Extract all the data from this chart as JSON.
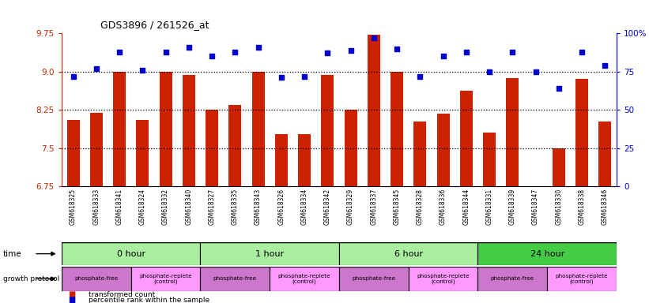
{
  "title": "GDS3896 / 261526_at",
  "samples": [
    "GSM618325",
    "GSM618333",
    "GSM618341",
    "GSM618324",
    "GSM618332",
    "GSM618340",
    "GSM618327",
    "GSM618335",
    "GSM618343",
    "GSM618326",
    "GSM618334",
    "GSM618342",
    "GSM618329",
    "GSM618337",
    "GSM618345",
    "GSM618328",
    "GSM618336",
    "GSM618344",
    "GSM618331",
    "GSM618339",
    "GSM618347",
    "GSM618330",
    "GSM618338",
    "GSM618346"
  ],
  "bar_values": [
    8.05,
    8.19,
    9.0,
    8.05,
    9.0,
    8.93,
    8.25,
    8.35,
    9.0,
    7.78,
    7.78,
    8.93,
    8.25,
    9.72,
    9.0,
    8.02,
    8.17,
    8.62,
    7.8,
    8.87,
    6.68,
    7.5,
    8.85,
    8.02
  ],
  "percentile_values": [
    72,
    77,
    88,
    76,
    88,
    91,
    85,
    88,
    91,
    71,
    72,
    87,
    89,
    97,
    90,
    72,
    85,
    88,
    75,
    88,
    75,
    64,
    88,
    79
  ],
  "ylim_left": [
    6.75,
    9.75
  ],
  "ylim_right": [
    0,
    100
  ],
  "yticks_left": [
    6.75,
    7.5,
    8.25,
    9.0,
    9.75
  ],
  "yticks_right": [
    0,
    25,
    50,
    75,
    100
  ],
  "ytick_labels_right": [
    "0",
    "25",
    "50",
    "75",
    "100%"
  ],
  "hlines": [
    9.0,
    8.25,
    7.5
  ],
  "time_groups": [
    {
      "label": "0 hour",
      "start": 0,
      "end": 6,
      "color": "#AAEEA0"
    },
    {
      "label": "1 hour",
      "start": 6,
      "end": 12,
      "color": "#AAEEA0"
    },
    {
      "label": "6 hour",
      "start": 12,
      "end": 18,
      "color": "#AAEEA0"
    },
    {
      "label": "24 hour",
      "start": 18,
      "end": 24,
      "color": "#44DD44"
    }
  ],
  "protocol_groups": [
    {
      "label": "phosphate-free",
      "start": 0,
      "end": 3,
      "color": "#CC77CC"
    },
    {
      "label": "phosphate-replete\n(control)",
      "start": 3,
      "end": 6,
      "color": "#FF99FF"
    },
    {
      "label": "phosphate-free",
      "start": 6,
      "end": 9,
      "color": "#CC77CC"
    },
    {
      "label": "phosphate-replete\n(control)",
      "start": 9,
      "end": 12,
      "color": "#FF99FF"
    },
    {
      "label": "phosphate-free",
      "start": 12,
      "end": 15,
      "color": "#CC77CC"
    },
    {
      "label": "phosphate-replete\n(control)",
      "start": 15,
      "end": 18,
      "color": "#FF99FF"
    },
    {
      "label": "phosphate-free",
      "start": 18,
      "end": 21,
      "color": "#CC77CC"
    },
    {
      "label": "phosphate-replete\n(control)",
      "start": 21,
      "end": 24,
      "color": "#FF99FF"
    }
  ],
  "bar_color": "#CC2200",
  "dot_color": "#0000CC",
  "background_color": "#FFFFFF",
  "tick_label_color_left": "#CC2200",
  "tick_label_color_right": "#0000CC",
  "sample_bg_color": "#DDDDDD"
}
